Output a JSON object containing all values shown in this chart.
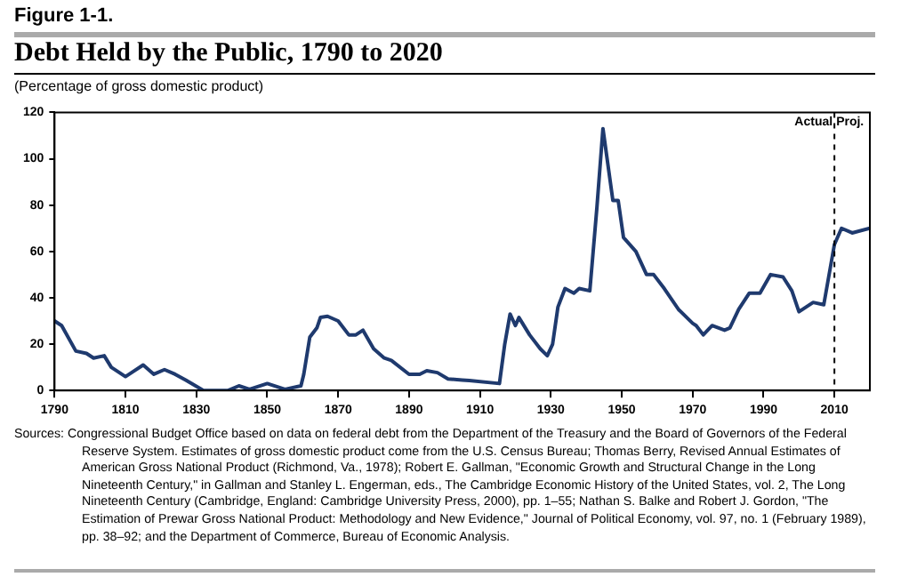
{
  "chart_data": {
    "type": "line",
    "title": "Figure 1-1.",
    "subtitle": "Debt Held by the Public, 1790 to 2020",
    "ylabel": "(Percentage of gross domestic product)",
    "x": [
      1790,
      1792,
      1796,
      1799,
      1801,
      1804,
      1806,
      1810,
      1812,
      1815,
      1818,
      1821,
      1824,
      1827,
      1832,
      1839,
      1842,
      1845,
      1850,
      1855,
      1859.5,
      1860.3,
      1862,
      1864,
      1865,
      1867,
      1870,
      1873,
      1875,
      1877,
      1880,
      1883,
      1885,
      1890,
      1893,
      1895,
      1898,
      1901,
      1905,
      1907,
      1915.5,
      1917,
      1918.5,
      1920,
      1921,
      1924,
      1927,
      1929,
      1930.5,
      1932,
      1934,
      1936.5,
      1938,
      1941,
      1943,
      1944.7,
      1947.5,
      1949,
      1950.5,
      1954,
      1957,
      1959,
      1962,
      1966,
      1970,
      1971,
      1973,
      1975.5,
      1979,
      1980.5,
      1983,
      1986,
      1989,
      1992,
      1995.5,
      1998,
      2000,
      2004,
      2007,
      2010,
      2012,
      2015,
      2020
    ],
    "series": [
      {
        "color": "#1f3a6e",
        "values": [
          30,
          28,
          17,
          16,
          14,
          15,
          10,
          6,
          8,
          11,
          7,
          9,
          7,
          4.5,
          0,
          0,
          2,
          0.5,
          3,
          0.5,
          2,
          7,
          23,
          27,
          31.5,
          32,
          30,
          24,
          24,
          26,
          18,
          14,
          13,
          7,
          7,
          8.5,
          7.7,
          5,
          4.5,
          4.3,
          3,
          20,
          33,
          28,
          31.5,
          24,
          18,
          15,
          20,
          36,
          44,
          42,
          44,
          43,
          79,
          113,
          82,
          82,
          66,
          60,
          50,
          50,
          44,
          35,
          29,
          28,
          24,
          28,
          26,
          27,
          35,
          42,
          42,
          50,
          49,
          43,
          34,
          38,
          37,
          63,
          70,
          68,
          70
        ]
      }
    ],
    "xlim": [
      1790,
      2020
    ],
    "xticks": [
      1790,
      1810,
      1830,
      1850,
      1870,
      1890,
      1910,
      1930,
      1950,
      1970,
      1990,
      2010
    ],
    "ylim": [
      0,
      120
    ],
    "yticks": [
      0,
      20,
      40,
      60,
      80,
      100,
      120
    ],
    "grid": false,
    "legend": false,
    "marker": "none",
    "line_style": "solid",
    "ref_lines": [
      {
        "axis": "x",
        "value": 2010,
        "color": "#000000",
        "line_style": "dashed"
      }
    ],
    "annotations": [
      {
        "text": "Actual",
        "x": 2010,
        "y": 120
      },
      {
        "text": "Proj.",
        "x": 2010,
        "y": 120
      },
      "Sources: Congressional Budget Office based on data on federal debt from the Department of the Treasury and the Board of Governors of the Federal Reserve System. Estimates of gross domestic product come from the U.S. Census Bureau; Thomas Berry, Revised Annual Estimates of American Gross National Product (Richmond, Va., 1978); Robert E. Gallman, \"Economic Growth and Structural Change in the Long Nineteenth Century,\" in Gallman and Stanley L. Engerman, eds., The Cambridge Economic History of the United States, vol. 2, The Long Nineteenth Century (Cambridge, England: Cambridge University Press, 2000), pp. 1–55; Nathan S. Balke and Robert J. Gordon, \"The Estimation of Prewar Gross National Product: Methodology and New Evidence,\" Journal of Political Economy, vol. 97, no. 1 (February 1989), pp. 38–92; and the Department of Commerce, Bureau of Economic Analysis."
    ]
  }
}
